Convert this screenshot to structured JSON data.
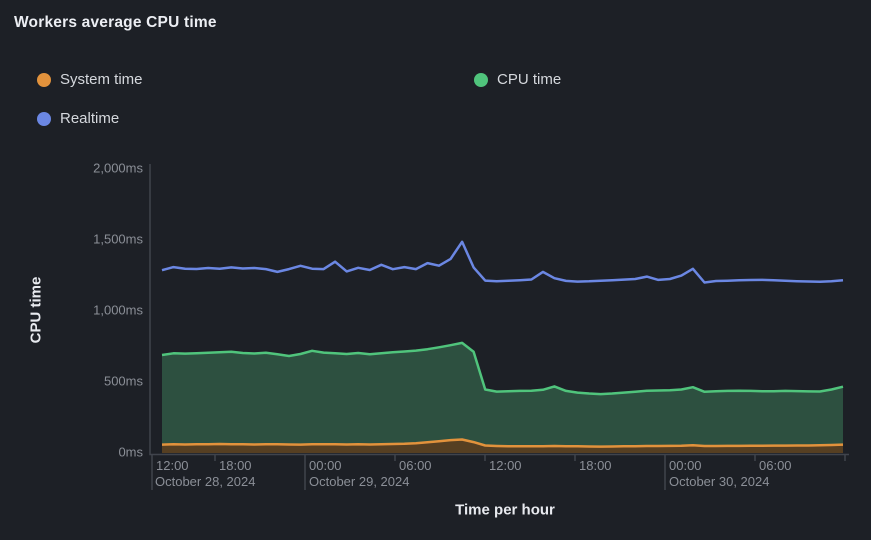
{
  "title": "Workers average CPU time",
  "legend": {
    "items": [
      {
        "label": "System time",
        "color": "#e2923c"
      },
      {
        "label": "Realtime",
        "color": "#6b87e3"
      },
      {
        "label": "CPU time",
        "color": "#50c47c"
      }
    ]
  },
  "chart_data": {
    "type": "area",
    "title": "Workers average CPU time",
    "xlabel": "Time per hour",
    "ylabel": "CPU time",
    "ylim": [
      0,
      2000
    ],
    "y_unit": "ms",
    "y_ticks": [
      {
        "value": 0,
        "label": "0ms"
      },
      {
        "value": 500,
        "label": "500ms"
      },
      {
        "value": 1000,
        "label": "1,000ms"
      },
      {
        "value": 1500,
        "label": "1,500ms"
      },
      {
        "value": 2000,
        "label": "2,000ms"
      }
    ],
    "x_axis": {
      "tick_labels": [
        "12:00",
        "18:00",
        "00:00",
        "06:00",
        "12:00",
        "18:00",
        "00:00",
        "06:00"
      ],
      "date_labels": [
        "October 28, 2024",
        "October 29, 2024",
        "October 30, 2024"
      ],
      "range_note": "hourly samples from ~12:00 October 28, 2024 to ~12:00 October 30, 2024",
      "grid": false,
      "legend_position": "top-left, two columns"
    },
    "series": [
      {
        "name": "CPU time",
        "color": "#50c47c",
        "fill": "#2d5040",
        "area": true,
        "values": [
          683,
          695,
          693,
          696,
          699,
          703,
          706,
          697,
          694,
          699,
          688,
          676,
          690,
          713,
          700,
          695,
          690,
          697,
          688,
          696,
          703,
          708,
          714,
          724,
          737,
          752,
          768,
          706,
          440,
          425,
          428,
          430,
          432,
          438,
          462,
          430,
          418,
          412,
          408,
          412,
          418,
          424,
          431,
          433,
          435,
          440,
          456,
          424,
          428,
          430,
          432,
          430,
          428,
          428,
          430,
          429,
          427,
          426,
          440,
          460
        ]
      },
      {
        "name": "System time",
        "color": "#e2923c",
        "fill": "#563f22",
        "area": true,
        "values": [
          52,
          54,
          53,
          54,
          55,
          56,
          55,
          54,
          53,
          54,
          55,
          53,
          52,
          54,
          55,
          54,
          53,
          54,
          53,
          55,
          56,
          58,
          62,
          68,
          76,
          84,
          88,
          70,
          46,
          42,
          40,
          40,
          41,
          40,
          42,
          41,
          40,
          39,
          38,
          39,
          40,
          41,
          42,
          42,
          43,
          44,
          48,
          42,
          42,
          43,
          43,
          44,
          44,
          45,
          45,
          46,
          46,
          47,
          49,
          52
        ]
      },
      {
        "name": "Realtime",
        "color": "#6b87e3",
        "fill": null,
        "area": false,
        "values": [
          1280,
          1302,
          1291,
          1289,
          1296,
          1291,
          1300,
          1292,
          1296,
          1288,
          1268,
          1288,
          1311,
          1291,
          1288,
          1340,
          1272,
          1297,
          1282,
          1318,
          1287,
          1302,
          1288,
          1330,
          1312,
          1360,
          1480,
          1300,
          1207,
          1203,
          1206,
          1210,
          1215,
          1268,
          1224,
          1205,
          1200,
          1202,
          1206,
          1210,
          1214,
          1218,
          1235,
          1212,
          1218,
          1242,
          1290,
          1194,
          1204,
          1206,
          1209,
          1211,
          1212,
          1209,
          1206,
          1203,
          1201,
          1199,
          1203,
          1209
        ]
      }
    ]
  },
  "colors": {
    "background": "#1d2026",
    "axis_line": "#40444c",
    "tick_text": "#8b8f97",
    "title_text": "#eceef3"
  }
}
